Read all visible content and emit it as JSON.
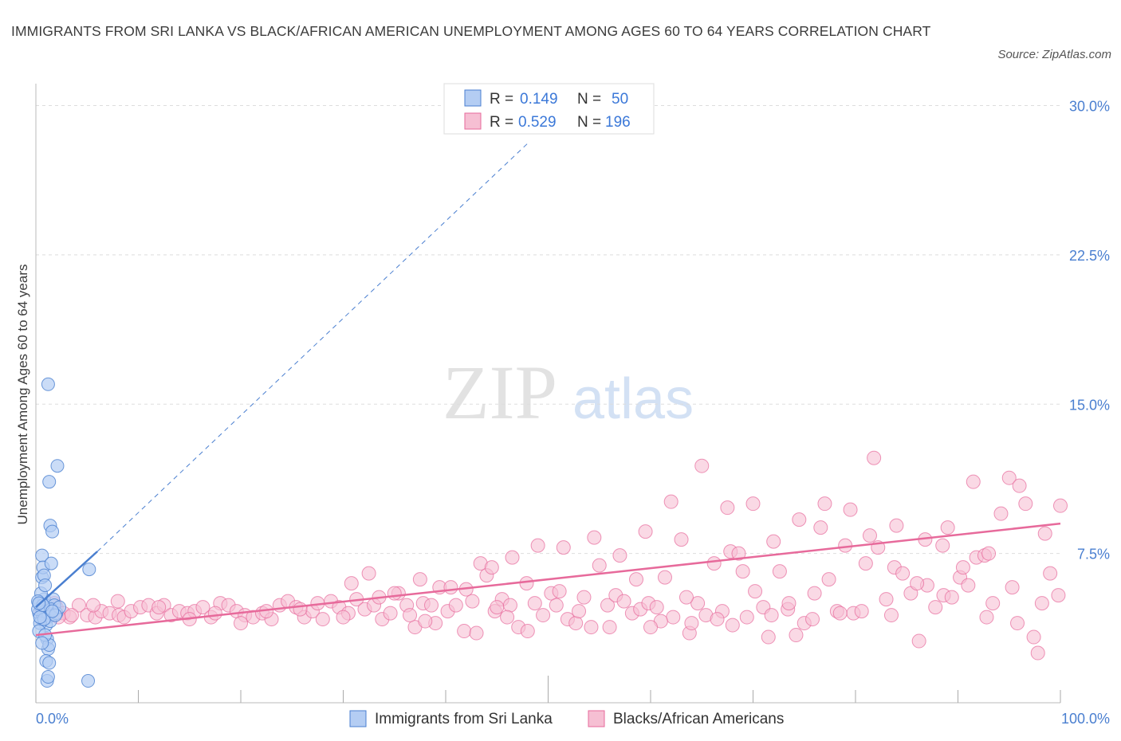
{
  "title": "IMMIGRANTS FROM SRI LANKA VS BLACK/AFRICAN AMERICAN UNEMPLOYMENT AMONG AGES 60 TO 64 YEARS CORRELATION CHART",
  "source": "Source: ZipAtlas.com",
  "watermark": {
    "zip": "ZIP",
    "atlas": "atlas"
  },
  "legend": {
    "r_label": "R =",
    "n_label": "N =",
    "series1": {
      "r": "0.149",
      "n": "50"
    },
    "series2": {
      "r": "0.529",
      "n": "196"
    }
  },
  "colors": {
    "blue": "#4a7fd0",
    "blue_fill": "#b4cdf3",
    "pink": "#e76a9b",
    "pink_fill": "#f6bfd3",
    "grid": "#dddddd"
  },
  "chart_data": {
    "type": "scatter",
    "title": "IMMIGRANTS FROM SRI LANKA VS BLACK/AFRICAN AMERICAN UNEMPLOYMENT AMONG AGES 60 TO 64 YEARS CORRELATION CHART",
    "xlabel": "",
    "ylabel": "Unemployment Among Ages 60 to 64 years",
    "xlim": [
      0,
      100
    ],
    "ylim": [
      0,
      30
    ],
    "x_tick_labels": [
      "0.0%",
      "100.0%"
    ],
    "y_ticks": [
      7.5,
      15,
      22.5,
      30
    ],
    "y_tick_labels": [
      "7.5%",
      "15.0%",
      "22.5%",
      "30.0%"
    ],
    "legend_position": "top-center",
    "series": [
      {
        "name": "Immigrants from Sri Lanka",
        "r": 0.149,
        "n": 50,
        "trend": {
          "x0": 0.0,
          "y0": 4.8,
          "x1": 6.0,
          "y1": 7.6,
          "dashed_to_x": 48.0,
          "dashed_to_y": 28.1
        },
        "points": [
          [
            0.3,
            4.5
          ],
          [
            0.5,
            4.8
          ],
          [
            0.4,
            5.0
          ],
          [
            0.6,
            4.2
          ],
          [
            0.7,
            4.6
          ],
          [
            0.8,
            5.2
          ],
          [
            0.9,
            4.4
          ],
          [
            1.0,
            4.9
          ],
          [
            1.1,
            4.6
          ],
          [
            1.2,
            4.3
          ],
          [
            0.2,
            4.7
          ],
          [
            0.5,
            5.5
          ],
          [
            0.6,
            6.3
          ],
          [
            0.6,
            7.4
          ],
          [
            0.7,
            6.8
          ],
          [
            0.8,
            6.4
          ],
          [
            0.9,
            5.9
          ],
          [
            1.0,
            3.9
          ],
          [
            1.1,
            3.2
          ],
          [
            1.2,
            2.7
          ],
          [
            1.3,
            2.9
          ],
          [
            1.0,
            2.1
          ],
          [
            1.3,
            2.0
          ],
          [
            1.1,
            1.1
          ],
          [
            1.2,
            1.3
          ],
          [
            1.3,
            11.1
          ],
          [
            1.4,
            8.9
          ],
          [
            1.2,
            16.0
          ],
          [
            2.1,
            11.9
          ],
          [
            1.6,
            8.6
          ],
          [
            1.5,
            7.0
          ],
          [
            1.7,
            5.2
          ],
          [
            1.8,
            4.9
          ],
          [
            1.4,
            4.1
          ],
          [
            0.4,
            4.0
          ],
          [
            0.3,
            3.6
          ],
          [
            0.9,
            3.4
          ],
          [
            0.6,
            3.0
          ],
          [
            0.2,
            5.1
          ],
          [
            0.8,
            4.2
          ],
          [
            1.5,
            4.7
          ],
          [
            2.0,
            4.5
          ],
          [
            2.3,
            4.8
          ],
          [
            5.1,
            1.1
          ],
          [
            5.2,
            6.7
          ],
          [
            1.9,
            4.4
          ],
          [
            0.4,
            4.3
          ],
          [
            0.7,
            4.9
          ],
          [
            1.6,
            4.6
          ],
          [
            0.3,
            5.0
          ]
        ]
      },
      {
        "name": "Blacks/African Americans",
        "r": 0.529,
        "n": 196,
        "trend": {
          "x0": 0.0,
          "y0": 3.4,
          "x1": 100.0,
          "y1": 9.0
        },
        "points": [
          [
            0.5,
            4.6
          ],
          [
            1.2,
            4.4
          ],
          [
            2.0,
            4.8
          ],
          [
            2.7,
            4.5
          ],
          [
            3.3,
            4.3
          ],
          [
            4.2,
            4.9
          ],
          [
            5.0,
            4.4
          ],
          [
            5.8,
            4.3
          ],
          [
            6.4,
            4.6
          ],
          [
            7.2,
            4.5
          ],
          [
            8.1,
            4.4
          ],
          [
            8.6,
            4.3
          ],
          [
            9.3,
            4.6
          ],
          [
            10.2,
            4.8
          ],
          [
            11.0,
            4.9
          ],
          [
            11.8,
            4.5
          ],
          [
            12.5,
            4.9
          ],
          [
            13.2,
            4.4
          ],
          [
            14.0,
            4.6
          ],
          [
            14.8,
            4.5
          ],
          [
            15.5,
            4.6
          ],
          [
            16.3,
            4.8
          ],
          [
            17.1,
            4.3
          ],
          [
            18.0,
            5.0
          ],
          [
            18.8,
            4.9
          ],
          [
            19.6,
            4.6
          ],
          [
            20.4,
            4.4
          ],
          [
            21.2,
            4.3
          ],
          [
            22.1,
            4.5
          ],
          [
            23.0,
            4.2
          ],
          [
            23.8,
            4.9
          ],
          [
            24.6,
            5.1
          ],
          [
            25.4,
            4.8
          ],
          [
            26.2,
            4.3
          ],
          [
            27.0,
            4.6
          ],
          [
            28.0,
            4.2
          ],
          [
            28.8,
            5.1
          ],
          [
            29.6,
            4.8
          ],
          [
            30.5,
            4.5
          ],
          [
            31.3,
            5.2
          ],
          [
            32.1,
            4.7
          ],
          [
            33.0,
            4.9
          ],
          [
            33.8,
            4.2
          ],
          [
            34.6,
            4.5
          ],
          [
            35.4,
            5.5
          ],
          [
            36.2,
            4.9
          ],
          [
            37.0,
            3.8
          ],
          [
            37.8,
            5.0
          ],
          [
            38.6,
            4.9
          ],
          [
            39.4,
            5.8
          ],
          [
            40.2,
            4.6
          ],
          [
            41.0,
            4.9
          ],
          [
            41.8,
            3.6
          ],
          [
            42.6,
            5.1
          ],
          [
            43.4,
            7.0
          ],
          [
            44.0,
            6.4
          ],
          [
            44.8,
            4.6
          ],
          [
            45.5,
            5.2
          ],
          [
            46.3,
            4.9
          ],
          [
            47.1,
            3.8
          ],
          [
            47.9,
            6.0
          ],
          [
            48.7,
            5.0
          ],
          [
            49.5,
            4.4
          ],
          [
            50.3,
            5.5
          ],
          [
            51.1,
            5.6
          ],
          [
            51.9,
            4.2
          ],
          [
            52.7,
            4.0
          ],
          [
            53.5,
            5.3
          ],
          [
            54.2,
            3.8
          ],
          [
            55.0,
            6.9
          ],
          [
            55.8,
            4.9
          ],
          [
            56.6,
            5.4
          ],
          [
            57.4,
            5.1
          ],
          [
            58.2,
            4.5
          ],
          [
            59.0,
            4.7
          ],
          [
            59.8,
            5.0
          ],
          [
            60.6,
            4.8
          ],
          [
            61.4,
            6.3
          ],
          [
            62.2,
            4.3
          ],
          [
            63.0,
            8.2
          ],
          [
            63.8,
            3.5
          ],
          [
            64.6,
            5.0
          ],
          [
            65.4,
            4.4
          ],
          [
            66.2,
            7.0
          ],
          [
            67.0,
            4.6
          ],
          [
            67.8,
            7.6
          ],
          [
            68.6,
            7.5
          ],
          [
            69.4,
            4.3
          ],
          [
            70.2,
            5.6
          ],
          [
            71.0,
            4.8
          ],
          [
            71.8,
            4.4
          ],
          [
            72.6,
            6.6
          ],
          [
            73.4,
            4.7
          ],
          [
            74.2,
            3.4
          ],
          [
            75.0,
            4.0
          ],
          [
            75.8,
            4.2
          ],
          [
            76.6,
            8.8
          ],
          [
            77.4,
            6.2
          ],
          [
            78.2,
            4.6
          ],
          [
            79.0,
            7.9
          ],
          [
            79.8,
            4.5
          ],
          [
            80.6,
            4.6
          ],
          [
            81.4,
            8.4
          ],
          [
            82.2,
            7.8
          ],
          [
            83.0,
            5.2
          ],
          [
            83.8,
            6.8
          ],
          [
            84.6,
            6.5
          ],
          [
            85.4,
            5.5
          ],
          [
            86.2,
            3.1
          ],
          [
            87.0,
            5.9
          ],
          [
            87.8,
            4.8
          ],
          [
            88.6,
            5.4
          ],
          [
            89.4,
            5.3
          ],
          [
            90.2,
            6.3
          ],
          [
            91.0,
            5.9
          ],
          [
            91.8,
            7.3
          ],
          [
            92.6,
            7.4
          ],
          [
            93.4,
            5.0
          ],
          [
            94.2,
            9.5
          ],
          [
            95.0,
            11.3
          ],
          [
            95.8,
            4.0
          ],
          [
            96.6,
            10.0
          ],
          [
            97.4,
            3.3
          ],
          [
            98.2,
            5.0
          ],
          [
            99.0,
            6.5
          ],
          [
            99.8,
            5.4
          ],
          [
            43.0,
            3.5
          ],
          [
            27.5,
            5.0
          ],
          [
            20.0,
            4.0
          ],
          [
            12.0,
            4.8
          ],
          [
            8.0,
            5.1
          ],
          [
            3.5,
            4.4
          ],
          [
            5.6,
            4.9
          ],
          [
            2.2,
            4.3
          ],
          [
            1.8,
            5.0
          ],
          [
            15.0,
            4.2
          ],
          [
            17.5,
            4.5
          ],
          [
            22.5,
            4.6
          ],
          [
            25.8,
            4.7
          ],
          [
            30.0,
            4.3
          ],
          [
            33.5,
            5.3
          ],
          [
            36.5,
            4.4
          ],
          [
            39.0,
            4.0
          ],
          [
            42.0,
            5.7
          ],
          [
            45.0,
            4.8
          ],
          [
            48.0,
            3.6
          ],
          [
            50.8,
            4.9
          ],
          [
            53.0,
            4.6
          ],
          [
            56.0,
            3.8
          ],
          [
            58.6,
            6.2
          ],
          [
            61.0,
            4.1
          ],
          [
            63.5,
            5.3
          ],
          [
            66.5,
            4.2
          ],
          [
            69.0,
            6.6
          ],
          [
            71.5,
            3.3
          ],
          [
            73.5,
            5.0
          ],
          [
            76.0,
            5.5
          ],
          [
            78.5,
            4.5
          ],
          [
            81.0,
            7.0
          ],
          [
            83.5,
            4.4
          ],
          [
            86.0,
            6.0
          ],
          [
            88.5,
            7.9
          ],
          [
            90.5,
            6.8
          ],
          [
            92.8,
            4.3
          ],
          [
            95.3,
            5.8
          ],
          [
            97.8,
            2.5
          ],
          [
            100.0,
            9.9
          ],
          [
            62.0,
            10.1
          ],
          [
            65.0,
            11.9
          ],
          [
            67.5,
            9.8
          ],
          [
            70.0,
            10.0
          ],
          [
            72.0,
            8.1
          ],
          [
            74.5,
            9.2
          ],
          [
            77.0,
            10.0
          ],
          [
            79.5,
            9.7
          ],
          [
            81.8,
            12.3
          ],
          [
            84.0,
            8.9
          ],
          [
            86.8,
            8.2
          ],
          [
            89.0,
            8.8
          ],
          [
            91.5,
            11.1
          ],
          [
            93.0,
            7.5
          ],
          [
            96.0,
            10.9
          ],
          [
            98.5,
            8.5
          ],
          [
            30.8,
            6.0
          ],
          [
            32.5,
            6.5
          ],
          [
            35.0,
            5.5
          ],
          [
            37.5,
            6.2
          ],
          [
            40.5,
            5.8
          ],
          [
            44.5,
            6.8
          ],
          [
            46.5,
            7.3
          ],
          [
            49.0,
            7.9
          ],
          [
            51.5,
            7.8
          ],
          [
            54.5,
            8.3
          ],
          [
            57.0,
            7.4
          ],
          [
            59.5,
            8.6
          ],
          [
            38.0,
            4.1
          ],
          [
            46.0,
            4.3
          ],
          [
            60.0,
            3.8
          ],
          [
            64.0,
            4.0
          ],
          [
            68.0,
            3.9
          ]
        ]
      }
    ]
  },
  "bottom_legend": [
    "Immigrants from Sri Lanka",
    "Blacks/African Americans"
  ]
}
